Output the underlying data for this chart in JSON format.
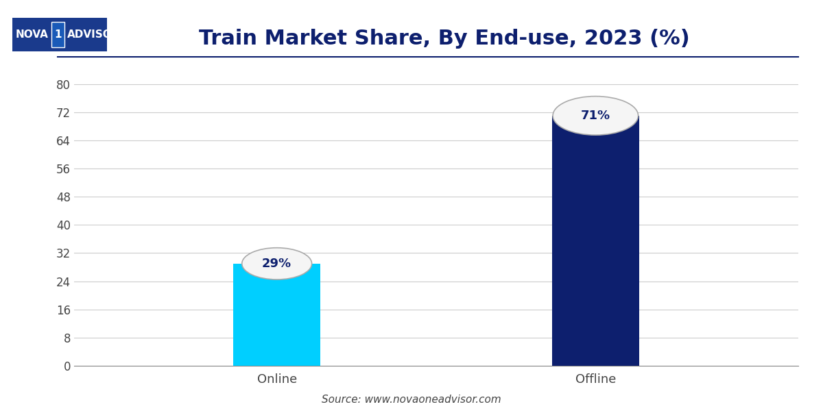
{
  "title": "Train Market Share, By End-use, 2023 (%)",
  "title_color": "#0d1f6e",
  "title_fontsize": 22,
  "categories": [
    "Online",
    "Offline"
  ],
  "values": [
    29,
    71
  ],
  "labels": [
    "29%",
    "71%"
  ],
  "bar_colors": [
    "#00cfff",
    "#0d1f6e"
  ],
  "background_color": "#ffffff",
  "ylim": [
    0,
    84
  ],
  "yticks": [
    0,
    8,
    16,
    24,
    32,
    40,
    48,
    56,
    64,
    72,
    80
  ],
  "source_text": "Source: www.novaoneadvisor.com",
  "line_color": "#0d1f6e",
  "tick_color": "#444444",
  "grid_color": "#cccccc",
  "label_fontsize": 13,
  "tick_fontsize": 12,
  "source_fontsize": 11,
  "bar_width": 0.12,
  "ellipse_facecolor": "#f5f5f5",
  "ellipse_edgecolor": "#aaaaaa",
  "label_text_color": "#0d1f6e",
  "x_positions": [
    0.28,
    0.72
  ]
}
